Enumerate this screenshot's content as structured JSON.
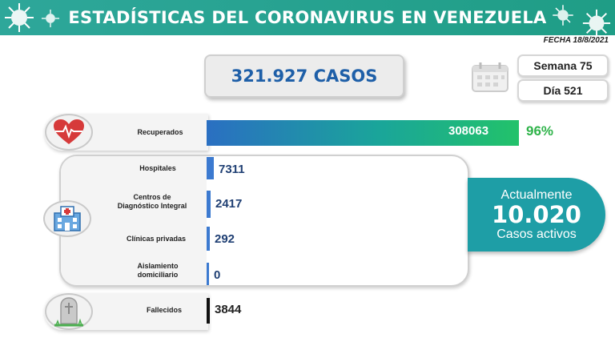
{
  "header": {
    "title": "ESTADÍSTICAS DEL CORONAVIRUS EN VENEZUELA",
    "date": "FECHA 18/8/2021"
  },
  "summary": {
    "cases": "321.927 CASOS",
    "week": "Semana 75",
    "day": "Día 521"
  },
  "colors": {
    "header_teal": "#2ea79a",
    "bar_blue": "#3c7ad0",
    "recovered_green": "#2fb34a",
    "active_teal": "#1e9ea6",
    "value_navy": "#1f3f73"
  },
  "icons": {
    "virus": "virus-icon",
    "calendar": "calendar-icon",
    "heart": "heart-pulse-icon",
    "hospital": "hospital-icon",
    "grave": "tombstone-icon"
  },
  "recovered": {
    "label": "Recuperados",
    "value": "308063",
    "percent": "96%"
  },
  "active": {
    "top": "Actualmente",
    "number": "10.020",
    "bottom": "Casos activos"
  },
  "deaths": {
    "label": "Fallecidos",
    "value": "3844"
  },
  "chart_data": {
    "type": "bar",
    "orientation": "horizontal",
    "categories": [
      "Recuperados",
      "Hospitales",
      "Centros de Diagnóstico Integral",
      "Clínicas privadas",
      "Aislamiento domiciliario",
      "Fallecidos"
    ],
    "values": [
      308063,
      7311,
      2417,
      292,
      0,
      3844
    ],
    "labels": {
      "hospitales": "Hospitales",
      "cdi_line1": "Centros de",
      "cdi_line2": "Diagnóstico Integral",
      "clinicas": "Clínicas privadas",
      "aislamiento_line1": "Aislamiento",
      "aislamiento_line2": "domiciliario"
    },
    "display_values": {
      "hospitales": "7311",
      "cdi": "2417",
      "clinicas": "292",
      "aislamiento": "0"
    }
  }
}
